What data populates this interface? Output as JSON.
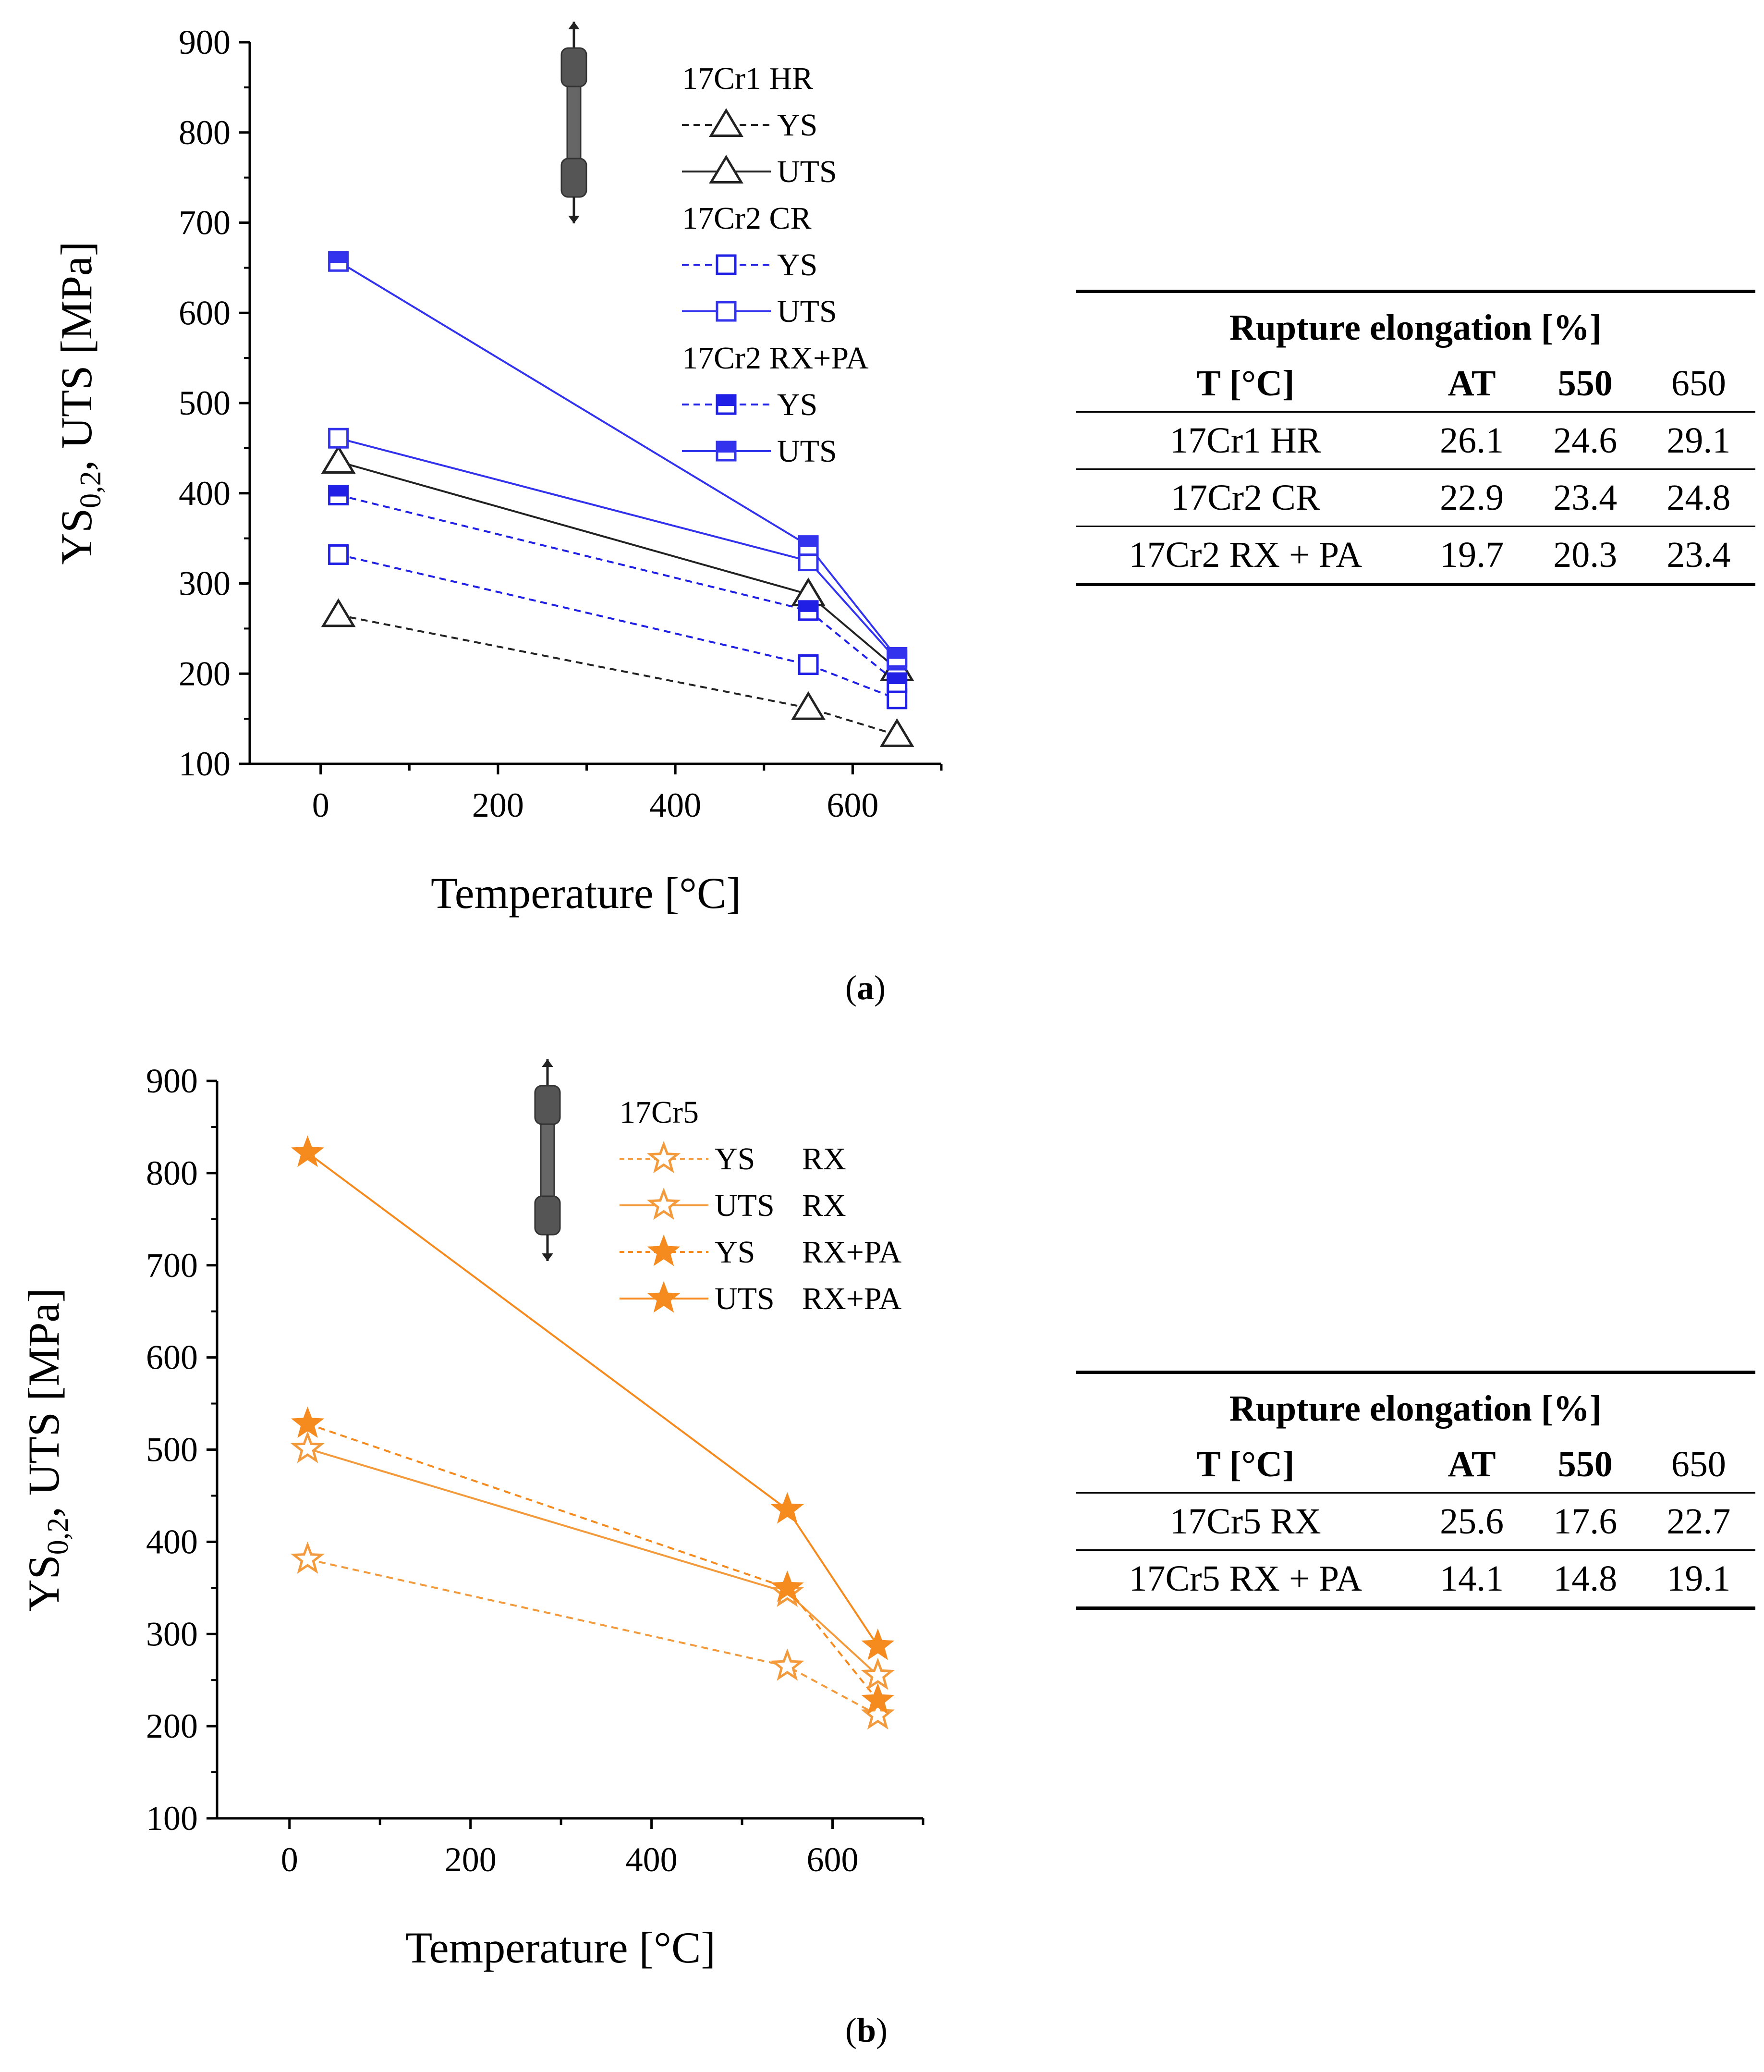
{
  "chart_data": [
    {
      "type": "line",
      "panel": "a",
      "xlabel": "Temperature [°C]",
      "ylabel_main": "YS",
      "ylabel_sub": "0,2",
      "ylabel_rest": ", UTS [MPa]",
      "xlim": [
        -80,
        700
      ],
      "ylim": [
        100,
        900
      ],
      "xticks": [
        0,
        200,
        400,
        600
      ],
      "yticks": [
        100,
        200,
        300,
        400,
        500,
        600,
        700,
        800,
        900
      ],
      "legend_title_groups": [
        "17Cr1 HR",
        "17Cr2 CR",
        "17Cr2 RX+PA"
      ],
      "series": [
        {
          "name": "YS",
          "group": "17Cr1 HR",
          "color": "#222222",
          "dash": true,
          "marker": "triangle",
          "x": [
            20,
            550,
            650
          ],
          "y": [
            265,
            162,
            132
          ]
        },
        {
          "name": "UTS",
          "group": "17Cr1 HR",
          "color": "#222222",
          "dash": false,
          "marker": "triangle",
          "x": [
            20,
            550,
            650
          ],
          "y": [
            435,
            288,
            205
          ]
        },
        {
          "name": "YS",
          "group": "17Cr2 CR",
          "color": "#1f1fe6",
          "dash": true,
          "marker": "square-open",
          "x": [
            20,
            550,
            650
          ],
          "y": [
            332,
            210,
            172
          ]
        },
        {
          "name": "UTS",
          "group": "17Cr2 CR",
          "color": "#3333ee",
          "dash": false,
          "marker": "square-open",
          "x": [
            20,
            550,
            650
          ],
          "y": [
            461,
            325,
            215
          ]
        },
        {
          "name": "YS",
          "group": "17Cr2 RX+PA",
          "color": "#1f1fe6",
          "dash": true,
          "marker": "square-half",
          "x": [
            20,
            550,
            650
          ],
          "y": [
            398,
            270,
            190
          ]
        },
        {
          "name": "UTS",
          "group": "17Cr2 RX+PA",
          "color": "#3333ee",
          "dash": false,
          "marker": "square-half",
          "x": [
            20,
            550,
            650
          ],
          "y": [
            657,
            342,
            218
          ]
        }
      ]
    },
    {
      "type": "line",
      "panel": "b",
      "xlabel": "Temperature [°C]",
      "ylabel_main": "YS",
      "ylabel_sub": "0,2",
      "ylabel_rest": ", UTS [MPa]",
      "xlim": [
        -80,
        700
      ],
      "ylim": [
        100,
        900
      ],
      "xticks": [
        0,
        200,
        400,
        600
      ],
      "yticks": [
        100,
        200,
        300,
        400,
        500,
        600,
        700,
        800,
        900
      ],
      "legend_title": "17Cr5",
      "series": [
        {
          "name": "YS",
          "cond": "RX",
          "color": "#f39a3c",
          "dash": true,
          "marker": "star-open",
          "x": [
            20,
            550,
            650
          ],
          "y": [
            381,
            265,
            212
          ]
        },
        {
          "name": "UTS",
          "cond": "RX",
          "color": "#f39a3c",
          "dash": false,
          "marker": "star-open",
          "x": [
            20,
            550,
            650
          ],
          "y": [
            501,
            345,
            255
          ]
        },
        {
          "name": "YS",
          "cond": "RX+PA",
          "color": "#f58a1f",
          "dash": true,
          "marker": "star-filled",
          "x": [
            20,
            550,
            650
          ],
          "y": [
            528,
            350,
            228
          ]
        },
        {
          "name": "UTS",
          "cond": "RX+PA",
          "color": "#f58a1f",
          "dash": false,
          "marker": "star-filled",
          "x": [
            20,
            550,
            650
          ],
          "y": [
            822,
            435,
            287
          ]
        }
      ]
    }
  ],
  "captions": {
    "a": "a",
    "b": "b"
  },
  "tables": {
    "a": {
      "title": "Rupture elongation [%]",
      "header": [
        "T [°C]",
        "AT",
        "550",
        "650"
      ],
      "rows": [
        [
          "17Cr1 HR",
          "26.1",
          "24.6",
          "29.1"
        ],
        [
          "17Cr2 CR",
          "22.9",
          "23.4",
          "24.8"
        ],
        [
          "17Cr2 RX + PA",
          "19.7",
          "20.3",
          "23.4"
        ]
      ]
    },
    "b": {
      "title": "Rupture elongation [%]",
      "header": [
        "T [°C]",
        "AT",
        "550",
        "650"
      ],
      "rows": [
        [
          "17Cr5 RX",
          "25.6",
          "17.6",
          "22.7"
        ],
        [
          "17Cr5 RX + PA",
          "14.1",
          "14.8",
          "19.1"
        ]
      ]
    }
  }
}
